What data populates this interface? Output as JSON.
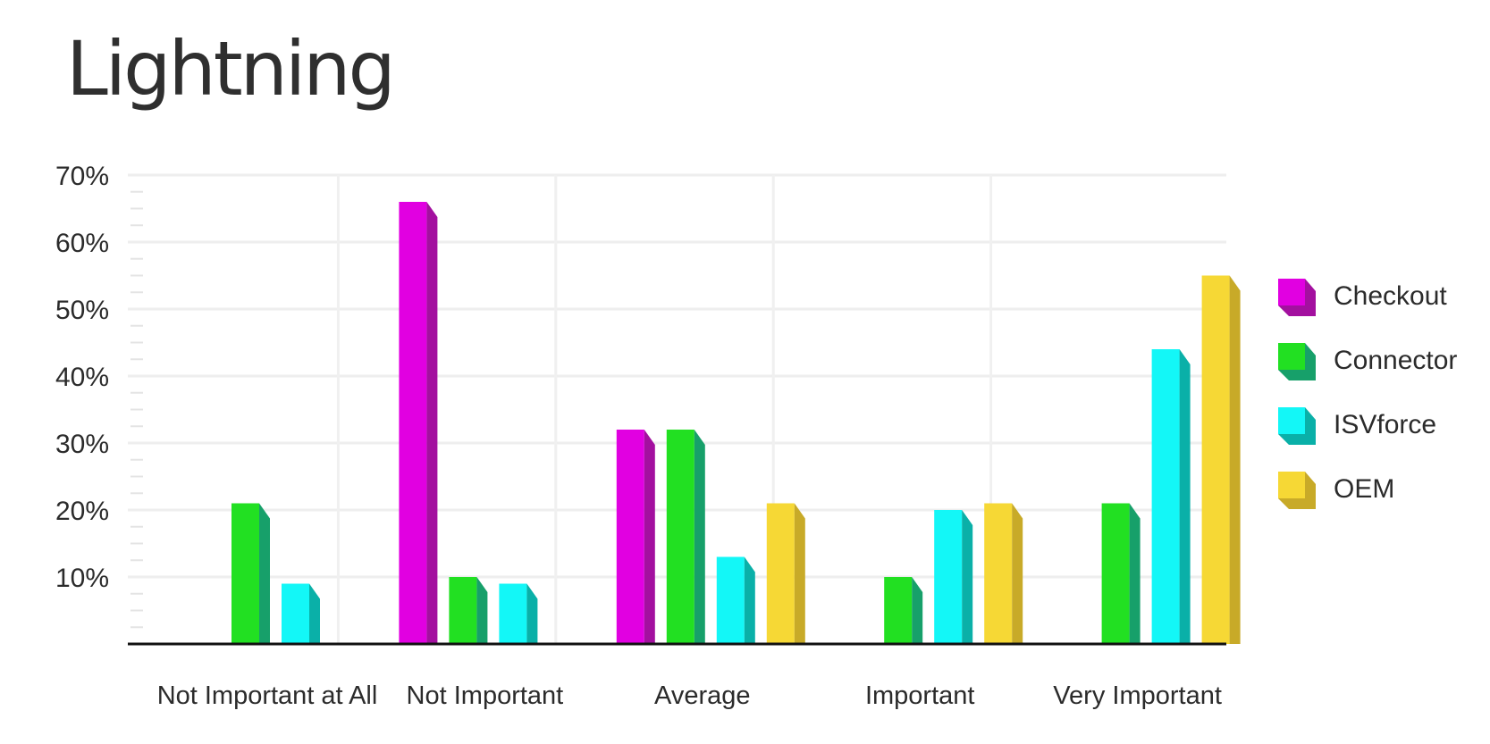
{
  "chart_data": {
    "type": "bar",
    "title": "Lightning",
    "xlabel": "",
    "ylabel": "",
    "ylim": [
      0,
      70
    ],
    "y_ticks": [
      "10%",
      "20%",
      "30%",
      "40%",
      "50%",
      "60%",
      "70%"
    ],
    "y_tick_values": [
      10,
      20,
      30,
      40,
      50,
      60,
      70
    ],
    "categories": [
      "Not Important at All",
      "Not Important",
      "Average",
      "Important",
      "Very Important"
    ],
    "series": [
      {
        "name": "Checkout",
        "color": "#e100e1",
        "shade": "#a3109f",
        "values": [
          0,
          66,
          32,
          0,
          0
        ]
      },
      {
        "name": "Connector",
        "color": "#22e022",
        "shade": "#17a06a",
        "values": [
          21,
          10,
          32,
          10,
          21
        ]
      },
      {
        "name": "ISVforce",
        "color": "#13f7f7",
        "shade": "#0ab0a8",
        "values": [
          9,
          9,
          13,
          20,
          44
        ]
      },
      {
        "name": "OEM",
        "color": "#f6d835",
        "shade": "#c8aa28",
        "values": [
          0,
          0,
          21,
          21,
          55
        ]
      }
    ],
    "grid": true,
    "legend_position": "right"
  }
}
